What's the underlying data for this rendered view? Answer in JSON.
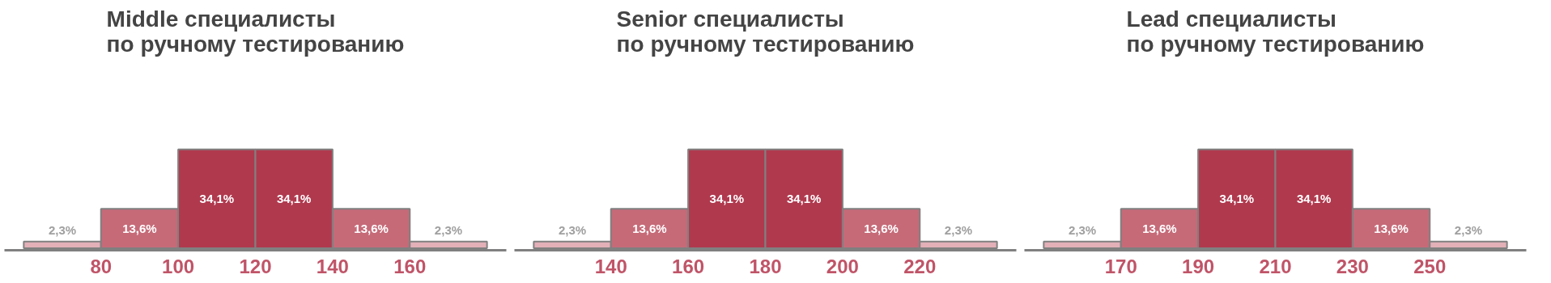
{
  "chart_data": [
    {
      "type": "bar",
      "title": "Middle специалисты\nпо ручному тестированию",
      "x": [
        70,
        90,
        110,
        130,
        150,
        170
      ],
      "values": [
        2.3,
        13.6,
        34.1,
        34.1,
        13.6,
        2.3
      ],
      "value_labels": [
        "2,3%",
        "13,6%",
        "34,1%",
        "34,1%",
        "13,6%",
        "2,3%"
      ],
      "colors": [
        "#e3b0b8",
        "#c66a78",
        "#b0394e",
        "#b0394e",
        "#c66a78",
        "#e3b0b8"
      ],
      "xlim": [
        55,
        185
      ],
      "xticks": [
        80,
        100,
        120,
        140,
        160
      ],
      "grid": false
    },
    {
      "type": "bar",
      "title": "Senior специалисты\nпо ручному тестированию",
      "x": [
        130,
        150,
        170,
        190,
        210,
        230
      ],
      "values": [
        2.3,
        13.6,
        34.1,
        34.1,
        13.6,
        2.3
      ],
      "value_labels": [
        "2,3%",
        "13,6%",
        "34,1%",
        "34,1%",
        "13,6%",
        "2,3%"
      ],
      "colors": [
        "#e3b0b8",
        "#c66a78",
        "#b0394e",
        "#b0394e",
        "#c66a78",
        "#e3b0b8"
      ],
      "xlim": [
        115,
        245
      ],
      "xticks": [
        140,
        160,
        180,
        200,
        220
      ],
      "grid": false
    },
    {
      "type": "bar",
      "title": "Lead специалисты\nпо ручному тестированию",
      "x": [
        160,
        180,
        200,
        220,
        240,
        260
      ],
      "values": [
        2.3,
        13.6,
        34.1,
        34.1,
        13.6,
        2.3
      ],
      "value_labels": [
        "2,3%",
        "13,6%",
        "34,1%",
        "34,1%",
        "13,6%",
        "2,3%"
      ],
      "colors": [
        "#e3b0b8",
        "#c66a78",
        "#b0394e",
        "#b0394e",
        "#c66a78",
        "#e3b0b8"
      ],
      "xlim": [
        145,
        275
      ],
      "xticks": [
        170,
        190,
        210,
        230,
        250
      ],
      "grid": false
    }
  ]
}
